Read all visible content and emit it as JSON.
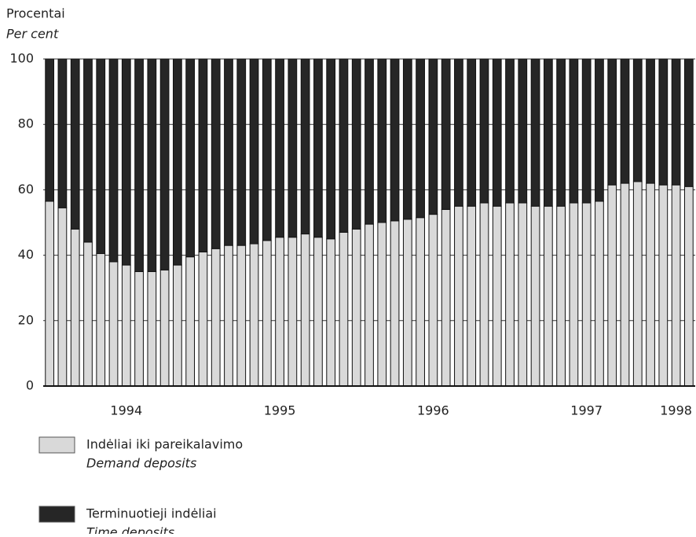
{
  "chart_data": {
    "type": "stacked_bar",
    "y_label": "Procentai",
    "y_label_en": "Per cent",
    "categories": [
      null,
      null,
      null,
      null,
      null,
      null,
      "1994",
      null,
      null,
      null,
      null,
      null,
      null,
      null,
      null,
      null,
      null,
      null,
      "1995",
      null,
      null,
      null,
      null,
      null,
      null,
      null,
      null,
      null,
      null,
      null,
      "1996",
      null,
      null,
      null,
      null,
      null,
      null,
      null,
      null,
      null,
      null,
      null,
      "1997",
      null,
      null,
      null,
      null,
      null,
      null,
      "1998",
      null
    ],
    "series": [
      {
        "name": "Indėliai iki pareikalavimo",
        "name_en": "Demand deposits",
        "color": "#d9d9d9",
        "values": [
          56.5,
          54.5,
          48,
          44,
          40.5,
          38,
          37,
          35,
          35,
          35.5,
          37,
          39.5,
          41,
          42,
          43,
          43,
          43.5,
          44.5,
          45.5,
          45.5,
          46.5,
          45.5,
          45,
          47,
          48,
          49.5,
          50,
          50.5,
          51,
          51.5,
          52.5,
          54,
          55,
          55,
          56,
          55,
          56,
          56,
          55,
          55,
          55,
          56,
          56,
          56.5,
          61.5,
          62,
          62.5,
          62,
          61.5,
          61.5,
          61
        ]
      },
      {
        "name": "Terminuotieji indėliai",
        "name_en": "Time deposits",
        "color": "#262626",
        "values": [
          43.5,
          45.5,
          52,
          56,
          59.5,
          62,
          63,
          65,
          65,
          64.5,
          63,
          60.5,
          59,
          58,
          57,
          57,
          56.5,
          55.5,
          54.5,
          54.5,
          53.5,
          54.5,
          55,
          53,
          52,
          50.5,
          50,
          49.5,
          49,
          48.5,
          47.5,
          46,
          45,
          45,
          44,
          45,
          44,
          44,
          45,
          45,
          45,
          44,
          44,
          43.5,
          38.5,
          38,
          37.5,
          38,
          38.5,
          38.5,
          39
        ]
      }
    ],
    "ylim": [
      0,
      100
    ],
    "yticks": [
      0,
      20,
      40,
      60,
      80,
      100
    ],
    "grid": true
  }
}
